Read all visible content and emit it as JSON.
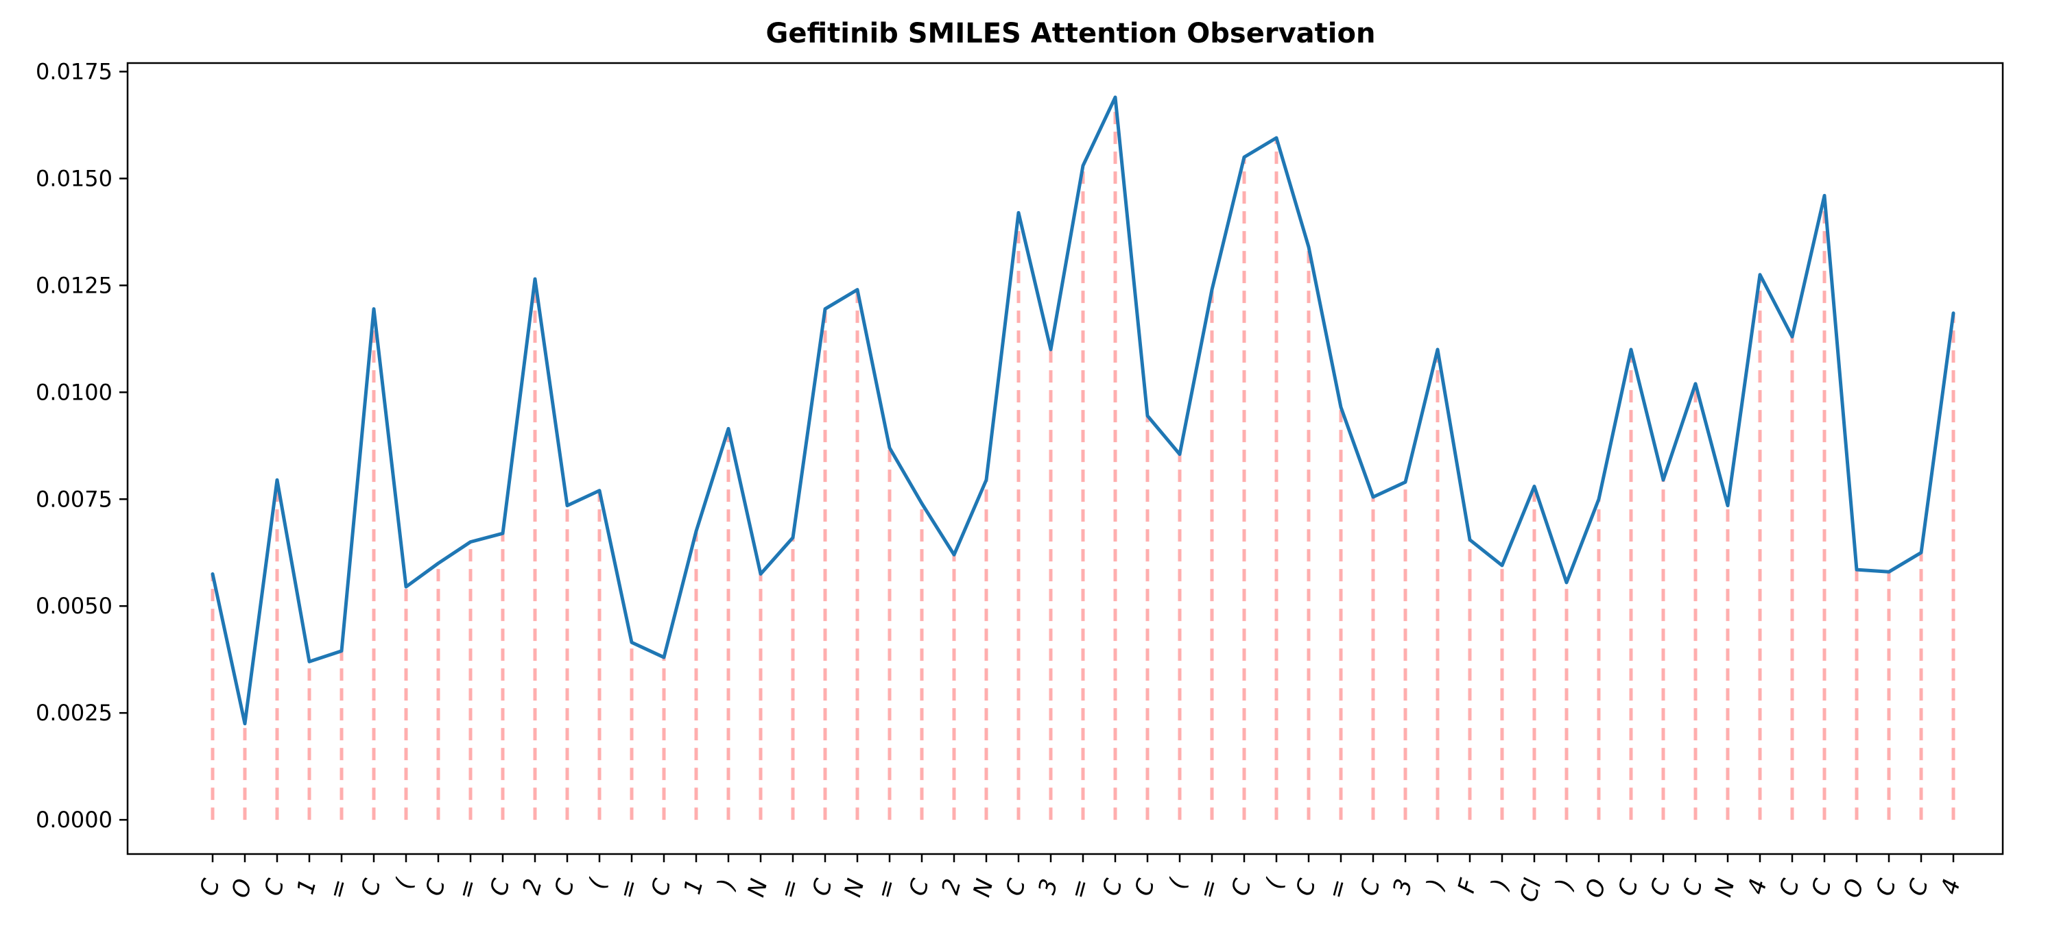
{
  "chart_data": {
    "type": "line",
    "title": "Gefitinib SMILES Attention Observation",
    "xlabel": "",
    "ylabel": "",
    "ylim": [
      -0.0008,
      0.0177
    ],
    "yticks": [
      "0.0000",
      "0.0025",
      "0.0050",
      "0.0075",
      "0.0100",
      "0.0125",
      "0.0150",
      "0.0175"
    ],
    "grid": false,
    "categories": [
      "C",
      "O",
      "C",
      "1",
      "=",
      "C",
      "(",
      "C",
      "=",
      "C",
      "2",
      "C",
      "(",
      "=",
      "C",
      "1",
      ")",
      "N",
      "=",
      "C",
      "N",
      "=",
      "C",
      "2",
      "N",
      "C",
      "3",
      "=",
      "C",
      "C",
      "(",
      "=",
      "C",
      "(",
      "C",
      "=",
      "C",
      "3",
      ")",
      "F",
      ")",
      "Cl",
      ")",
      "O",
      "C",
      "C",
      "C",
      "N",
      "4",
      "C",
      "C",
      "O",
      "C",
      "C",
      "4"
    ],
    "series": [
      {
        "values": [
          0.00575,
          0.00225,
          0.00795,
          0.0037,
          0.00395,
          0.01195,
          0.00545,
          0.006,
          0.0065,
          0.0067,
          0.01265,
          0.00735,
          0.0077,
          0.00415,
          0.0038,
          0.00675,
          0.00915,
          0.00575,
          0.0066,
          0.01195,
          0.0124,
          0.0087,
          0.0074,
          0.0062,
          0.00795,
          0.0142,
          0.011,
          0.0153,
          0.0169,
          0.00945,
          0.00855,
          0.0124,
          0.0155,
          0.01595,
          0.0134,
          0.00965,
          0.00755,
          0.0079,
          0.011,
          0.00655,
          0.00595,
          0.0078,
          0.00555,
          0.0075,
          0.011,
          0.00795,
          0.0102,
          0.00735,
          0.01275,
          0.0113,
          0.0146,
          0.00585,
          0.0058,
          0.00625,
          0.01185
        ],
        "color": "#1f77b4"
      }
    ],
    "stem_color": "#ff9a9a",
    "stem_style": "dashed"
  }
}
